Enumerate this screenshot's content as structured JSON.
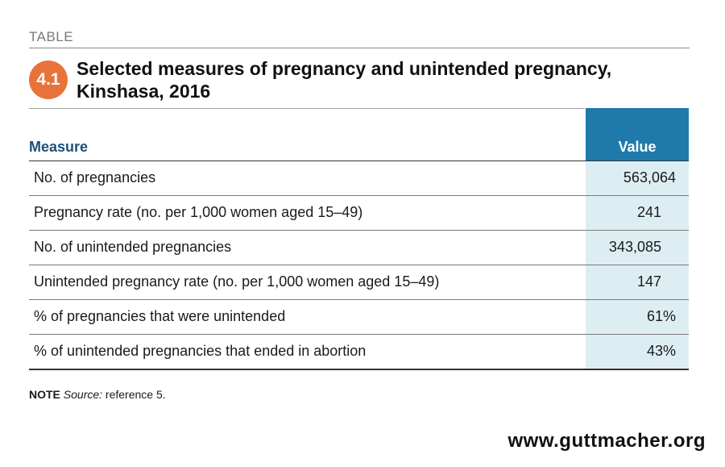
{
  "header": {
    "kicker": "TABLE",
    "badge": "4.1",
    "title_line1": "Selected measures of pregnancy and unintended pregnancy,",
    "title_line2": "Kinshasa, 2016"
  },
  "table": {
    "columns": {
      "measure": "Measure",
      "value": "Value"
    },
    "rows": [
      {
        "label": "No. of pregnancies",
        "value": "563,064"
      },
      {
        "label": "Pregnancy rate (no. per 1,000 women aged 15–49)",
        "value": "241"
      },
      {
        "label": "No. of unintended pregnancies",
        "value": "343,085"
      },
      {
        "label": "Unintended pregnancy rate (no. per 1,000 women aged 15–49)",
        "value": "147"
      },
      {
        "label": "% of pregnancies that were unintended",
        "value": "61%"
      },
      {
        "label": "% of unintended pregnancies that ended in abortion",
        "value": "43%"
      }
    ]
  },
  "note": {
    "key": "NOTE",
    "source_label": "Source:",
    "source_text": " reference 5."
  },
  "footer": {
    "site": "www.guttmacher.org"
  },
  "colors": {
    "badge": "#e8733a",
    "value_header": "#1f7aab",
    "value_column": "#ddeef3",
    "measure_header": "#1d4f7a"
  }
}
